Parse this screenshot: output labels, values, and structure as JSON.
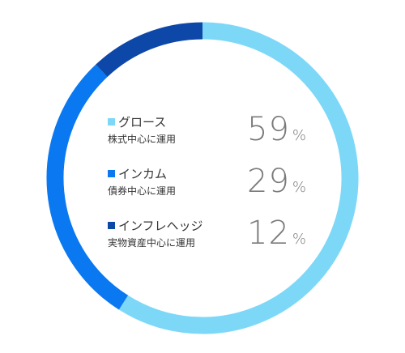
{
  "chart_data": {
    "type": "pie",
    "categories": [
      "グロース",
      "インカム",
      "インフレヘッジ"
    ],
    "values": [
      59,
      29,
      12
    ],
    "descriptions": [
      "株式中心に運用",
      "債券中心に運用",
      "実物資産中心に運用"
    ],
    "unit": "%",
    "colors": [
      "#7dd8f8",
      "#0a78f0",
      "#0d47a8"
    ]
  }
}
